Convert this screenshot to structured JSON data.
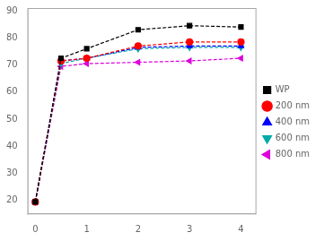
{
  "chart_data": {
    "type": "line",
    "x": [
      0,
      0.5,
      1,
      2,
      3,
      4
    ],
    "series": [
      {
        "name": "WP",
        "color": "#000000",
        "marker": "square",
        "line_style": "dashed",
        "values": [
          19.5,
          72.5,
          76.0,
          83.0,
          84.5,
          84.0
        ]
      },
      {
        "name": "200 nm",
        "color": "#ff0000",
        "marker": "circle",
        "line_style": "dashed",
        "values": [
          19.5,
          71.5,
          72.5,
          77.0,
          78.5,
          78.5
        ]
      },
      {
        "name": "400 nm",
        "color": "#0000ff",
        "marker": "triangle_up",
        "line_style": "dashed",
        "values": [
          19.5,
          71.5,
          72.5,
          76.5,
          77.0,
          77.0
        ]
      },
      {
        "name": "600 nm",
        "color": "#00aaaa",
        "marker": "triangle_down",
        "line_style": "dashed",
        "values": [
          19.5,
          70.5,
          72.5,
          76.0,
          76.5,
          76.5
        ]
      },
      {
        "name": "800 nm",
        "color": "#dd00dd",
        "marker": "triangle_left",
        "line_style": "dashed",
        "values": [
          19.5,
          69.5,
          70.5,
          71.0,
          71.5,
          72.5
        ]
      }
    ],
    "xlim": [
      -0.15,
      4.3
    ],
    "ylim": [
      15,
      91
    ],
    "xticks": [
      0,
      1,
      2,
      3,
      4
    ],
    "yticks": [
      20,
      30,
      40,
      50,
      60,
      70,
      80,
      90
    ],
    "grid": false,
    "legend": "right"
  }
}
